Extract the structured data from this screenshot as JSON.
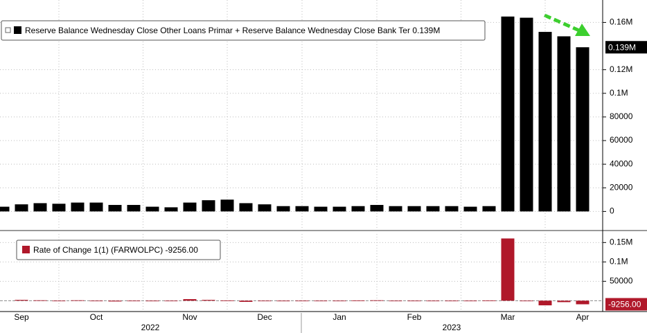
{
  "chart_data": [
    {
      "type": "bar",
      "categories": [
        null,
        "Sep",
        null,
        null,
        null,
        "Oct",
        null,
        null,
        null,
        null,
        "Nov",
        null,
        null,
        null,
        "Dec",
        null,
        null,
        null,
        "Jan",
        null,
        null,
        null,
        "Feb",
        null,
        null,
        null,
        null,
        "Mar",
        null,
        null,
        null,
        "Apr"
      ],
      "years": [
        "2022",
        "2023"
      ],
      "series": [
        {
          "name": "Reserve Balance Wednesday Close Other Loans Primar + Reserve Balance Wednesday Close Bank Ter",
          "color": "#000000",
          "values": [
            4000,
            6000,
            7000,
            6500,
            7500,
            7500,
            5500,
            5500,
            4000,
            3500,
            7500,
            9500,
            10000,
            7000,
            6000,
            4500,
            4500,
            4000,
            4000,
            4500,
            5500,
            4500,
            4500,
            4500,
            4500,
            4000,
            4500,
            165000,
            164000,
            152000,
            148256,
            139000
          ]
        }
      ],
      "last_value_label": "0.139M",
      "ylim": [
        -15000,
        179000
      ],
      "yticks": [
        0,
        20000,
        40000,
        60000,
        80000,
        {
          "value": 100000,
          "label": "0.1M"
        },
        {
          "value": 120000,
          "label": "0.12M"
        },
        {
          "value": 160000,
          "label": "0.16M"
        }
      ],
      "grid": true
    },
    {
      "type": "bar",
      "series": [
        {
          "name": "Rate of Change 1(1) (FARWOLPC)",
          "color": "#b0182a",
          "values": [
            null,
            2000,
            1000,
            -500,
            1000,
            0,
            -2000,
            0,
            -1500,
            -500,
            4000,
            2000,
            500,
            -3000,
            -1000,
            -1500,
            0,
            -500,
            0,
            500,
            1000,
            -1000,
            0,
            0,
            0,
            -500,
            500,
            160500,
            -1000,
            -12000,
            -3744,
            -9256
          ]
        }
      ],
      "last_value_label": "-9256.00",
      "ylim": [
        -28000,
        172000
      ],
      "yticks": [
        50000,
        {
          "value": 100000,
          "label": "0.1M"
        },
        {
          "value": 150000,
          "label": "0.15M"
        }
      ],
      "grid": true
    }
  ]
}
